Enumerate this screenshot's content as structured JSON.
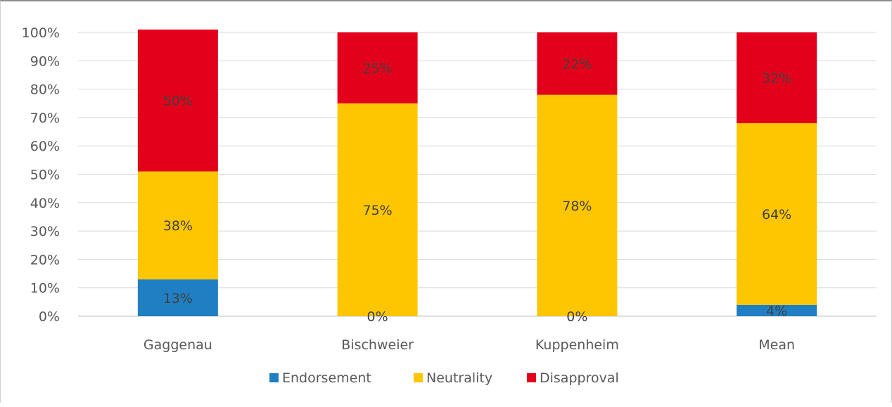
{
  "chart_data": {
    "type": "bar",
    "stacked": true,
    "categories": [
      "Gaggenau",
      "Bischweier",
      "Kuppenheim",
      "Mean"
    ],
    "series": [
      {
        "name": "Endorsement",
        "color": "#1f7fc2",
        "values": [
          13,
          0,
          0,
          4
        ],
        "labels": [
          "13%",
          "0%",
          "0%",
          "4%"
        ]
      },
      {
        "name": "Neutrality",
        "color": "#fec600",
        "values": [
          38,
          75,
          78,
          64
        ],
        "labels": [
          "38%",
          "75%",
          "78%",
          "64%"
        ]
      },
      {
        "name": "Disapproval",
        "color": "#e3001b",
        "values": [
          50,
          25,
          22,
          32
        ],
        "labels": [
          "50%",
          "25%",
          "22%",
          "32%"
        ]
      }
    ],
    "yticks": [
      "0%",
      "10%",
      "20%",
      "30%",
      "40%",
      "50%",
      "60%",
      "70%",
      "80%",
      "90%",
      "100%"
    ],
    "ylim": [
      0,
      100
    ],
    "grid": true,
    "legend_position": "bottom",
    "title": "",
    "xlabel": "",
    "ylabel": ""
  }
}
